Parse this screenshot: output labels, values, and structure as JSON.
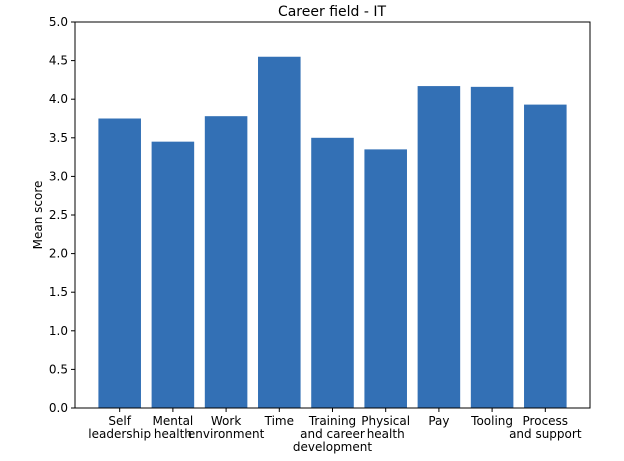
{
  "chart_data": {
    "type": "bar",
    "title": "Career field - IT",
    "xlabel": "",
    "ylabel": "Mean score",
    "ylim": [
      0,
      5
    ],
    "yticks": [
      "0.0",
      "0.5",
      "1.0",
      "1.5",
      "2.0",
      "2.5",
      "3.0",
      "3.5",
      "4.0",
      "4.5",
      "5.0"
    ],
    "grid": false,
    "bar_color": "#3370b5",
    "categories": [
      [
        "Self",
        "leadership"
      ],
      [
        "Mental",
        "health"
      ],
      [
        "Work",
        "environment"
      ],
      [
        "Time"
      ],
      [
        "Training",
        "and career",
        "development"
      ],
      [
        "Physical",
        "health"
      ],
      [
        "Pay"
      ],
      [
        "Tooling"
      ],
      [
        "Process",
        "and support"
      ]
    ],
    "values": [
      3.75,
      3.45,
      3.78,
      4.55,
      3.5,
      3.35,
      4.17,
      4.16,
      3.93
    ]
  }
}
